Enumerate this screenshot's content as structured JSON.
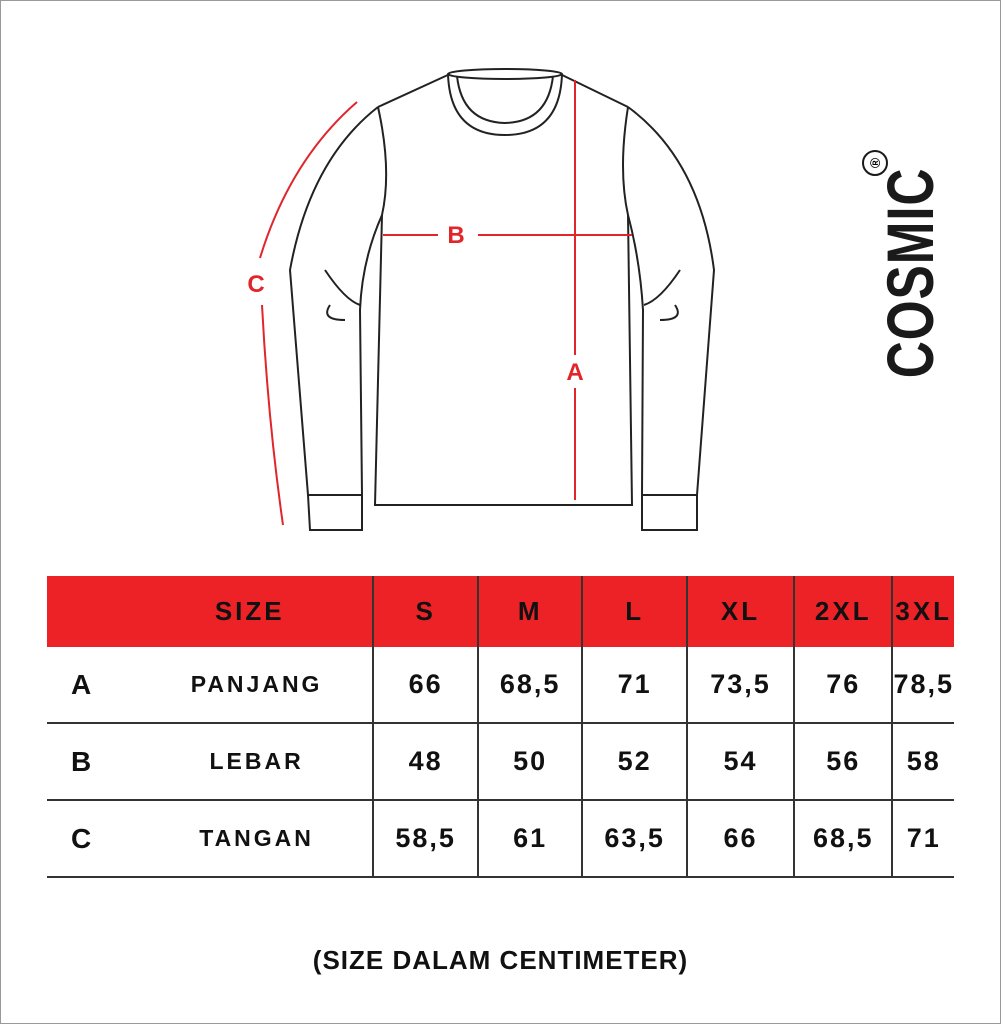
{
  "brand": {
    "name": "COSMIC",
    "registered": "®"
  },
  "diagram": {
    "labels": {
      "a": "A",
      "b": "B",
      "c": "C"
    },
    "measure_color": "#E0262B"
  },
  "table": {
    "header_color": "#EC2227",
    "header": [
      "SIZE",
      "S",
      "M",
      "L",
      "XL",
      "2XL",
      "3XL"
    ],
    "rows": [
      {
        "key": "A",
        "name": "PANJANG",
        "values": [
          "66",
          "68,5",
          "71",
          "73,5",
          "76",
          "78,5"
        ]
      },
      {
        "key": "B",
        "name": "LEBAR",
        "values": [
          "48",
          "50",
          "52",
          "54",
          "56",
          "58"
        ]
      },
      {
        "key": "C",
        "name": "TANGAN",
        "values": [
          "58,5",
          "61",
          "63,5",
          "66",
          "68,5",
          "71"
        ]
      }
    ]
  },
  "note": "(SIZE DALAM CENTIMETER)"
}
